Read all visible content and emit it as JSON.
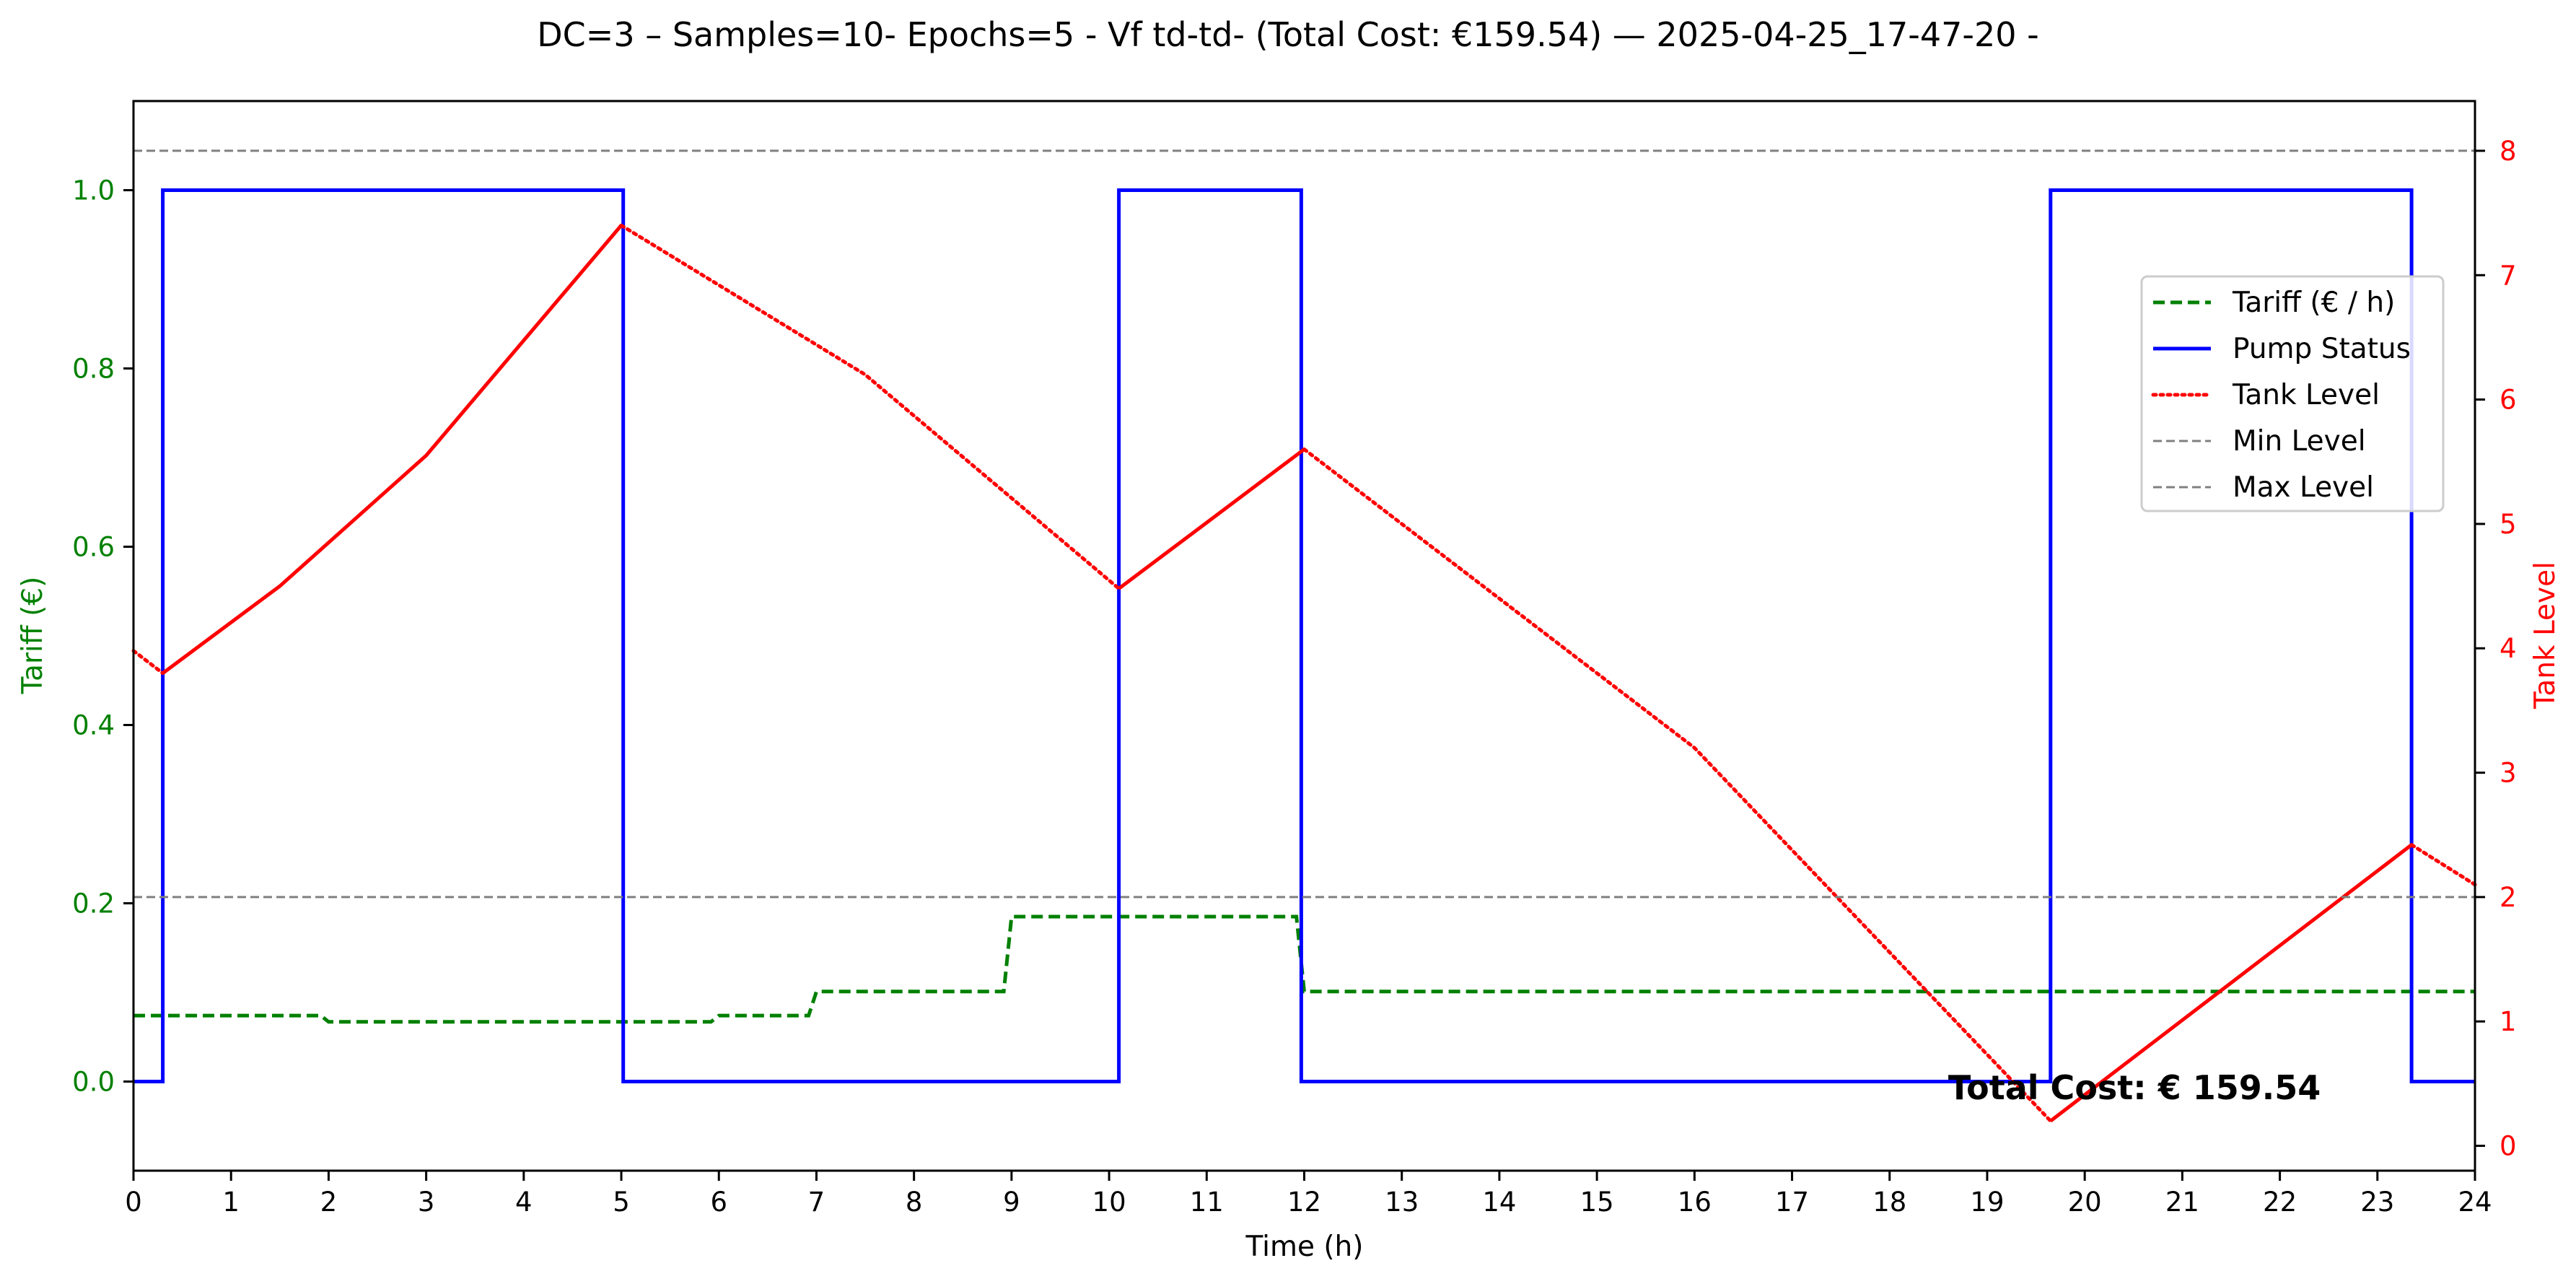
{
  "chart_data": {
    "type": "line",
    "title": "DC=3 – Samples=10- Epochs=5 - Vf td-td- (Total Cost: €159.54) — 2025-04-25_17-47-20 -",
    "xlabel": "Time (h)",
    "ylabel_left": "Tariff (€)",
    "ylabel_right": "Tank Level",
    "xlim": [
      0,
      24
    ],
    "ylim_left": [
      -0.1,
      1.1
    ],
    "ylim_right": [
      -0.2,
      8.4
    ],
    "x_ticks": [
      0,
      1,
      2,
      3,
      4,
      5,
      6,
      7,
      8,
      9,
      10,
      11,
      12,
      13,
      14,
      15,
      16,
      17,
      18,
      19,
      20,
      21,
      22,
      23,
      24
    ],
    "y_ticks_left": [
      0.0,
      0.2,
      0.4,
      0.6,
      0.8,
      1.0
    ],
    "y_ticks_right": [
      0,
      1,
      2,
      3,
      4,
      5,
      6,
      7,
      8
    ],
    "x_tick_labels": [
      "0",
      "1",
      "2",
      "3",
      "4",
      "5",
      "6",
      "7",
      "8",
      "9",
      "10",
      "11",
      "12",
      "13",
      "14",
      "15",
      "16",
      "17",
      "18",
      "19",
      "20",
      "21",
      "22",
      "23",
      "24"
    ],
    "y_tick_labels_left": [
      "0.0",
      "0.2",
      "0.4",
      "0.6",
      "0.8",
      "1.0"
    ],
    "y_tick_labels_right": [
      "0",
      "1",
      "2",
      "3",
      "4",
      "5",
      "6",
      "7",
      "8"
    ],
    "colors": {
      "tariff": "#008000",
      "pump": "#0000ff",
      "tank": "#ff0000",
      "limits": "#808080",
      "left_axis": "#008000",
      "right_axis": "#ff0000"
    },
    "series": [
      {
        "name": "Tariff (€ / h)",
        "axis": "left",
        "style": "dashed",
        "points": [
          [
            0,
            0.074
          ],
          [
            1.92,
            0.074
          ],
          [
            2.0,
            0.067
          ],
          [
            5.92,
            0.067
          ],
          [
            6.0,
            0.074
          ],
          [
            6.92,
            0.074
          ],
          [
            7.0,
            0.101
          ],
          [
            8.92,
            0.101
          ],
          [
            9.0,
            0.185
          ],
          [
            11.92,
            0.185
          ],
          [
            12.0,
            0.101
          ],
          [
            24,
            0.101
          ]
        ]
      },
      {
        "name": "Pump Status",
        "axis": "left",
        "style": "solid",
        "step": true,
        "points": [
          [
            0,
            0
          ],
          [
            0.3,
            0
          ],
          [
            0.3,
            1
          ],
          [
            5.02,
            1
          ],
          [
            5.02,
            0
          ],
          [
            10.1,
            0
          ],
          [
            10.1,
            1
          ],
          [
            11.97,
            1
          ],
          [
            11.97,
            0
          ],
          [
            19.65,
            0
          ],
          [
            19.65,
            1
          ],
          [
            23.35,
            1
          ],
          [
            23.35,
            0
          ],
          [
            24,
            0
          ]
        ]
      },
      {
        "name": "Tank Level",
        "axis": "right",
        "segments": [
          {
            "style": "dotted",
            "points": [
              [
                0,
                3.98
              ],
              [
                0.3,
                3.8
              ]
            ]
          },
          {
            "style": "solid",
            "points": [
              [
                0.3,
                3.8
              ],
              [
                1.5,
                4.5
              ],
              [
                3.0,
                5.55
              ],
              [
                5.0,
                7.4
              ]
            ]
          },
          {
            "style": "dotted",
            "points": [
              [
                5.0,
                7.4
              ],
              [
                7.5,
                6.2
              ],
              [
                10.1,
                4.48
              ]
            ]
          },
          {
            "style": "solid",
            "points": [
              [
                10.1,
                4.48
              ],
              [
                12.0,
                5.6
              ]
            ]
          },
          {
            "style": "dotted",
            "points": [
              [
                12.0,
                5.6
              ],
              [
                16.0,
                3.2
              ],
              [
                19.65,
                0.2
              ]
            ]
          },
          {
            "style": "solid",
            "points": [
              [
                19.65,
                0.2
              ],
              [
                23.35,
                2.42
              ]
            ]
          },
          {
            "style": "dotted",
            "points": [
              [
                23.35,
                2.42
              ],
              [
                24,
                2.1
              ]
            ]
          }
        ]
      },
      {
        "name": "Min Level",
        "axis": "right",
        "style": "dashed-thin",
        "points": [
          [
            0,
            2
          ],
          [
            24,
            2
          ]
        ]
      },
      {
        "name": "Max Level",
        "axis": "right",
        "style": "dashed-thin",
        "points": [
          [
            0,
            8
          ],
          [
            24,
            8
          ]
        ]
      }
    ],
    "legend_placement": "upper-right",
    "annotation": {
      "text": "Total Cost: € 159.54",
      "x": 18.6,
      "y_left": -0.02
    },
    "grid": false
  }
}
